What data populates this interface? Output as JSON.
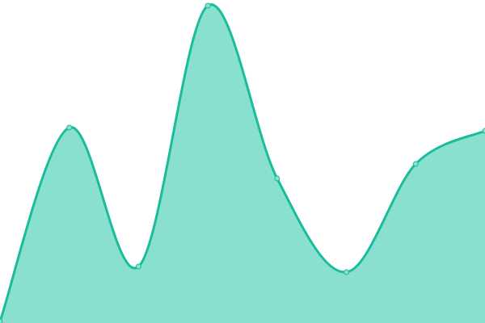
{
  "chart_data": {
    "type": "area",
    "title": "",
    "xlabel": "",
    "ylabel": "",
    "x": [
      0,
      1,
      2,
      3,
      4,
      5,
      6,
      7
    ],
    "series": [
      {
        "values": [
          2,
          242,
          70,
          393,
          179,
          63,
          197,
          238
        ]
      }
    ],
    "xlim": [
      0,
      7
    ],
    "ylim": [
      0,
      400
    ],
    "grid": false,
    "axes_visible": false,
    "curve": "smooth",
    "colors": {
      "line": "#1abc9c",
      "fill": "#89e0ce",
      "marker_fill": "#89e0ce"
    }
  }
}
